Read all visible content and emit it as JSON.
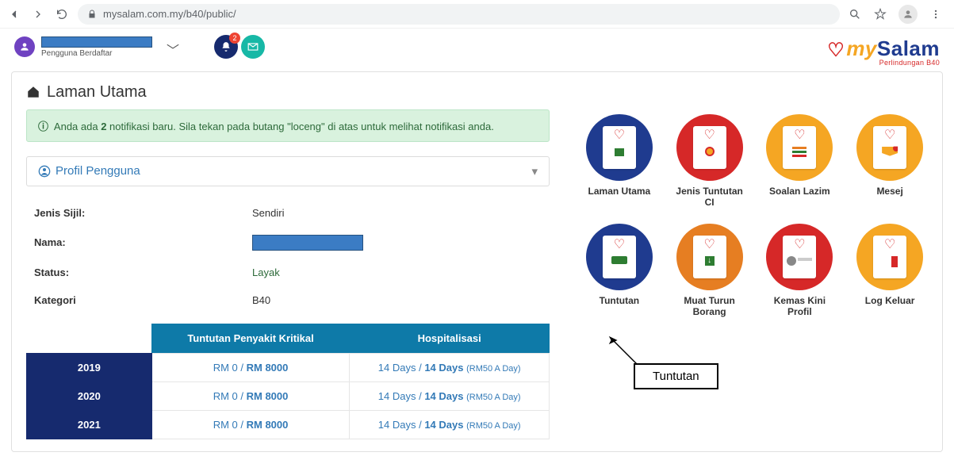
{
  "browser": {
    "url": "mysalam.com.my/b40/public/"
  },
  "header": {
    "user_type": "Pengguna Berdaftar",
    "notification_count": "2",
    "logo_my": "my",
    "logo_salam": "Salam",
    "logo_tagline": "Perlindungan B40"
  },
  "page": {
    "title": "Laman Utama",
    "alert_prefix": "Anda ada ",
    "alert_bold": "2",
    "alert_suffix": " notifikasi baru. Sila tekan pada butang \"loceng\" di atas untuk melihat notifikasi anda.",
    "panel_title": "Profil Pengguna"
  },
  "profile": {
    "rows": [
      {
        "key": "Jenis Sijil:",
        "value": "Sendiri",
        "cls": ""
      },
      {
        "key": "Nama:",
        "value": "",
        "cls": "name"
      },
      {
        "key": "Status:",
        "value": "Layak",
        "cls": "status"
      },
      {
        "key": "Kategori",
        "value": "B40",
        "cls": ""
      }
    ]
  },
  "claims": {
    "header_critical": "Tuntutan Penyakit Kritikal",
    "header_hospital": "Hospitalisasi",
    "rows": [
      {
        "year": "2019",
        "crit_used": "RM 0",
        "crit_total": "RM 8000",
        "hosp_used": "14 Days",
        "hosp_total": "14 Days",
        "hosp_rate": "(RM50 A Day)"
      },
      {
        "year": "2020",
        "crit_used": "RM 0",
        "crit_total": "RM 8000",
        "hosp_used": "14 Days",
        "hosp_total": "14 Days",
        "hosp_rate": "(RM50 A Day)"
      },
      {
        "year": "2021",
        "crit_used": "RM 0",
        "crit_total": "RM 8000",
        "hosp_used": "14 Days",
        "hosp_total": "14 Days",
        "hosp_rate": "(RM50 A Day)"
      }
    ]
  },
  "menu": {
    "items": [
      {
        "label": "Laman Utama",
        "color": "#1f3b8f",
        "icon_accent": "#2e7d32"
      },
      {
        "label": "Jenis Tuntutan CI",
        "color": "#d62828",
        "icon_accent": "#f5a623"
      },
      {
        "label": "Soalan Lazim",
        "color": "#f5a623",
        "icon_accent": "#e67e22"
      },
      {
        "label": "Mesej",
        "color": "#f5a623",
        "icon_accent": "#d62828"
      },
      {
        "label": "Tuntutan",
        "color": "#1f3b8f",
        "icon_accent": "#2e7d32"
      },
      {
        "label": "Muat Turun Borang",
        "color": "#e67e22",
        "icon_accent": "#2e7d32"
      },
      {
        "label": "Kemas Kini Profil",
        "color": "#d62828",
        "icon_accent": "#888"
      },
      {
        "label": "Log Keluar",
        "color": "#f5a623",
        "icon_accent": "#d62828"
      }
    ]
  },
  "callout": {
    "text": "Tuntutan"
  }
}
